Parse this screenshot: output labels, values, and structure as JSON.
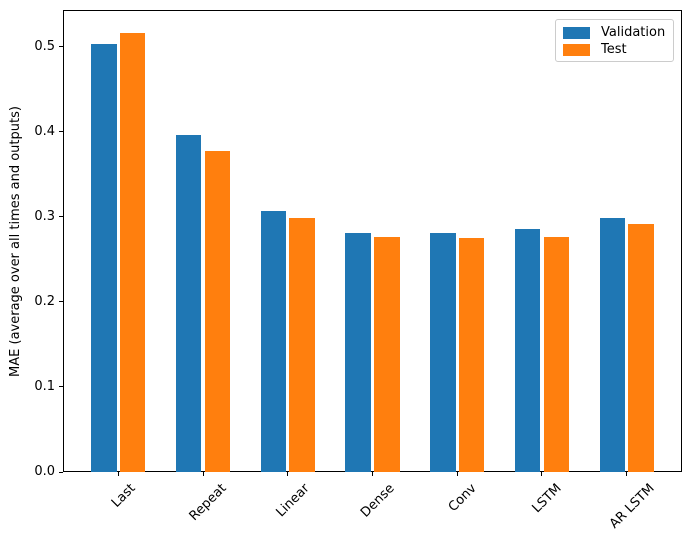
{
  "chart_data": {
    "type": "bar",
    "title": "",
    "xlabel": "",
    "ylabel": "MAE (average over all times and outputs)",
    "categories": [
      "Last",
      "Repeat",
      "Linear",
      "Dense",
      "Conv",
      "LSTM",
      "AR LSTM"
    ],
    "series": [
      {
        "name": "Validation",
        "color": "#1f77b4",
        "values": [
          0.503,
          0.396,
          0.307,
          0.281,
          0.281,
          0.286,
          0.299
        ]
      },
      {
        "name": "Test",
        "color": "#ff7f0e",
        "values": [
          0.516,
          0.378,
          0.299,
          0.277,
          0.275,
          0.277,
          0.292
        ]
      }
    ],
    "ylim": [
      0,
      0.5435
    ],
    "ytick_labels": [
      "0.0",
      "0.1",
      "0.2",
      "0.3",
      "0.4",
      "0.5"
    ],
    "x_tick_rotation": 45,
    "grid": false,
    "legend_position": "upper right",
    "bar_width": 0.3,
    "bar_offset": 0.17
  }
}
